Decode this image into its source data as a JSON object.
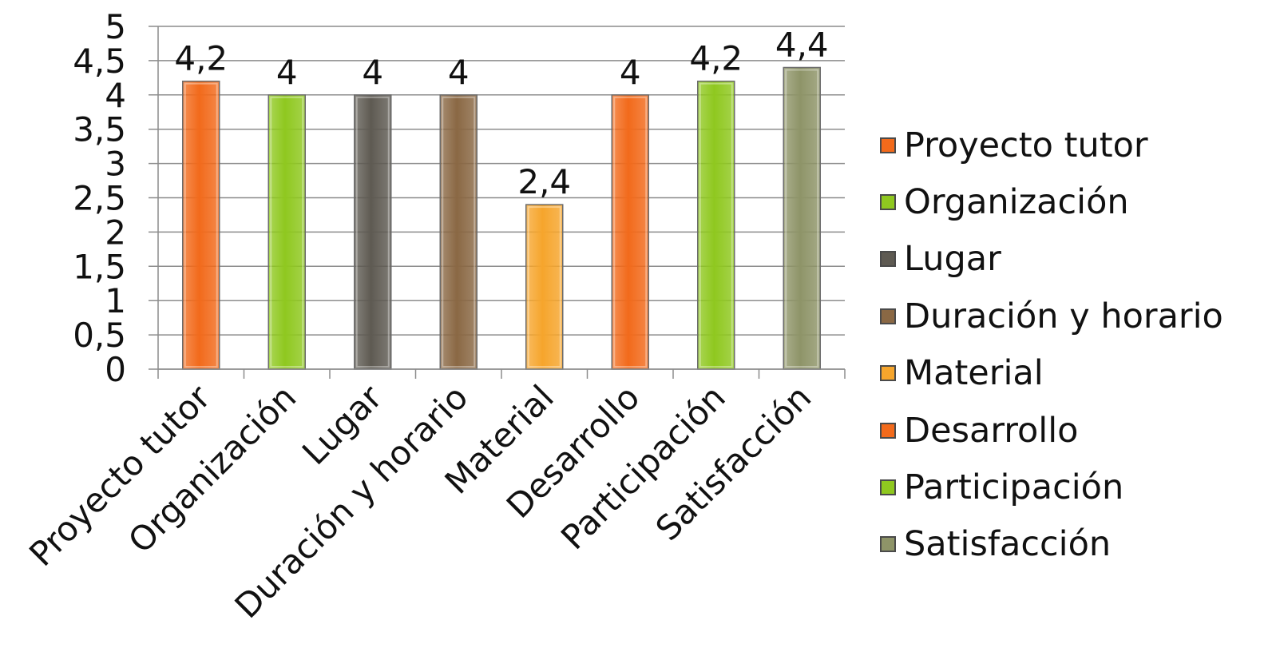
{
  "chart_data": {
    "type": "bar",
    "categories": [
      "Proyecto tutor",
      "Organización",
      "Lugar",
      "Duración y horario",
      "Material",
      "Desarrollo",
      "Participación",
      "Satisfacción"
    ],
    "values": [
      4.2,
      4,
      4,
      4,
      2.4,
      4,
      4.2,
      4.4
    ],
    "data_labels": [
      "4,2",
      "4",
      "4",
      "4",
      "2,4",
      "4",
      "4,2",
      "4,4"
    ],
    "y_ticks": [
      "0",
      "0,5",
      "1",
      "1,5",
      "2",
      "2,5",
      "3",
      "3,5",
      "4",
      "4,5",
      "5"
    ],
    "ylim": [
      0,
      5
    ],
    "grid": true,
    "legend_position": "right",
    "colors": [
      "#f26a1b",
      "#8fc81f",
      "#5e5a52",
      "#8a6844",
      "#f6a52c",
      "#f26a1b",
      "#8fc81f",
      "#8e9468"
    ],
    "legend": [
      {
        "label": "Proyecto tutor",
        "color": "#f26a1b"
      },
      {
        "label": "Organización",
        "color": "#8fc81f"
      },
      {
        "label": "Lugar",
        "color": "#5e5a52"
      },
      {
        "label": "Duración y horario",
        "color": "#8a6844"
      },
      {
        "label": "Material",
        "color": "#f6a52c"
      },
      {
        "label": "Desarrollo",
        "color": "#f26a1b"
      },
      {
        "label": "Participación",
        "color": "#8fc81f"
      },
      {
        "label": "Satisfacción",
        "color": "#8e9468"
      }
    ]
  }
}
